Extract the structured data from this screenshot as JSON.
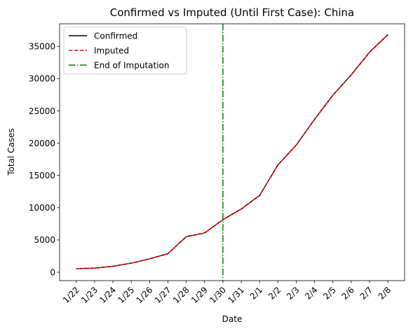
{
  "chart_data": {
    "type": "line",
    "title": "Confirmed vs Imputed (Until First Case): China",
    "xlabel": "Date",
    "ylabel": "Total Cases",
    "categories": [
      "1/22",
      "1/23",
      "1/24",
      "1/25",
      "1/26",
      "1/27",
      "1/28",
      "1/29",
      "1/30",
      "1/31",
      "2/1",
      "2/2",
      "2/3",
      "2/4",
      "2/5",
      "2/6",
      "2/7",
      "2/8"
    ],
    "ylim": [
      -1300,
      38500
    ],
    "yticks": [
      0,
      5000,
      10000,
      15000,
      20000,
      25000,
      30000,
      35000
    ],
    "series": [
      {
        "name": "Confirmed",
        "color": "#000000",
        "style": "solid",
        "values": [
          548,
          643,
          920,
          1406,
          2075,
          2877,
          5509,
          6087,
          8141,
          9802,
          11891,
          16630,
          19716,
          23707,
          27440,
          30587,
          34110,
          36814
        ]
      },
      {
        "name": "Imputed",
        "color": "#ff0000",
        "style": "dashed",
        "values": [
          548,
          643,
          920,
          1406,
          2075,
          2877,
          5509,
          6087,
          8141,
          9802,
          11891,
          16630,
          19716,
          23707,
          27440,
          30587,
          34110,
          36814
        ]
      }
    ],
    "vline": {
      "name": "End of Imputation",
      "color": "#008000",
      "style": "dashdot",
      "at": "1/30"
    },
    "legend": "top-left",
    "grid": false
  }
}
